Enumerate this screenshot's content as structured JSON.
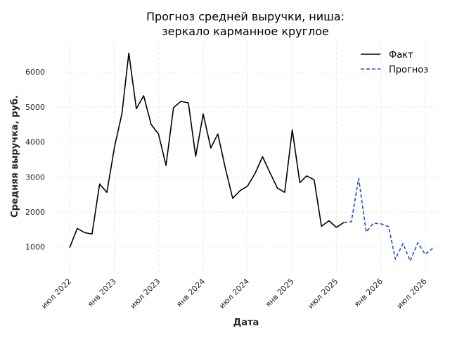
{
  "chart_data": {
    "type": "line",
    "title_lines": [
      "Прогноз средней выручки, ниша:",
      "зеркало карманное круглое"
    ],
    "xlabel": "Дата",
    "ylabel": "Средняя выручка, руб.",
    "x_ticks": [
      {
        "date": "2022-07-01",
        "label": "июл 2022"
      },
      {
        "date": "2023-01-01",
        "label": "янв 2023"
      },
      {
        "date": "2023-07-01",
        "label": "июл 2023"
      },
      {
        "date": "2024-01-01",
        "label": "янв 2024"
      },
      {
        "date": "2024-07-01",
        "label": "июл 2024"
      },
      {
        "date": "2025-01-01",
        "label": "янв 2025"
      },
      {
        "date": "2025-07-01",
        "label": "июл 2025"
      },
      {
        "date": "2026-01-01",
        "label": "янв 2026"
      },
      {
        "date": "2026-07-01",
        "label": "июл 2026"
      }
    ],
    "y_ticks": [
      1000,
      2000,
      3000,
      4000,
      5000,
      6000
    ],
    "xlim": [
      "2022-05-01",
      "2026-09-01"
    ],
    "ylim": [
      250,
      6850
    ],
    "grid": true,
    "legend_position": "top-right",
    "series": [
      {
        "name": "Факт",
        "color": "#000000",
        "style": "solid",
        "points": [
          [
            "2022-07-01",
            980
          ],
          [
            "2022-08-01",
            1530
          ],
          [
            "2022-09-01",
            1410
          ],
          [
            "2022-10-01",
            1370
          ],
          [
            "2022-11-01",
            2800
          ],
          [
            "2022-12-01",
            2560
          ],
          [
            "2023-01-01",
            3850
          ],
          [
            "2023-02-01",
            4820
          ],
          [
            "2023-03-01",
            6540
          ],
          [
            "2023-04-01",
            4950
          ],
          [
            "2023-05-01",
            5320
          ],
          [
            "2023-06-01",
            4500
          ],
          [
            "2023-07-01",
            4230
          ],
          [
            "2023-08-01",
            3330
          ],
          [
            "2023-09-01",
            4980
          ],
          [
            "2023-10-01",
            5160
          ],
          [
            "2023-11-01",
            5120
          ],
          [
            "2023-12-01",
            3590
          ],
          [
            "2024-01-01",
            4800
          ],
          [
            "2024-02-01",
            3830
          ],
          [
            "2024-03-01",
            4230
          ],
          [
            "2024-04-01",
            3250
          ],
          [
            "2024-05-01",
            2390
          ],
          [
            "2024-06-01",
            2610
          ],
          [
            "2024-07-01",
            2740
          ],
          [
            "2024-08-01",
            3100
          ],
          [
            "2024-09-01",
            3580
          ],
          [
            "2024-10-01",
            3130
          ],
          [
            "2024-11-01",
            2680
          ],
          [
            "2024-12-01",
            2560
          ],
          [
            "2025-01-01",
            4350
          ],
          [
            "2025-02-01",
            2840
          ],
          [
            "2025-03-01",
            3030
          ],
          [
            "2025-04-01",
            2920
          ],
          [
            "2025-05-01",
            1590
          ],
          [
            "2025-06-01",
            1750
          ],
          [
            "2025-07-01",
            1560
          ],
          [
            "2025-08-01",
            1700
          ]
        ]
      },
      {
        "name": "Прогноз",
        "color": "#1f4fd1",
        "style": "dashed",
        "points": [
          [
            "2025-08-01",
            1700
          ],
          [
            "2025-09-01",
            1720
          ],
          [
            "2025-10-01",
            2960
          ],
          [
            "2025-11-01",
            1430
          ],
          [
            "2025-12-01",
            1680
          ],
          [
            "2026-01-01",
            1660
          ],
          [
            "2026-02-01",
            1580
          ],
          [
            "2026-03-01",
            650
          ],
          [
            "2026-04-01",
            1100
          ],
          [
            "2026-05-01",
            600
          ],
          [
            "2026-06-01",
            1120
          ],
          [
            "2026-07-01",
            790
          ],
          [
            "2026-08-01",
            960
          ]
        ]
      }
    ]
  }
}
